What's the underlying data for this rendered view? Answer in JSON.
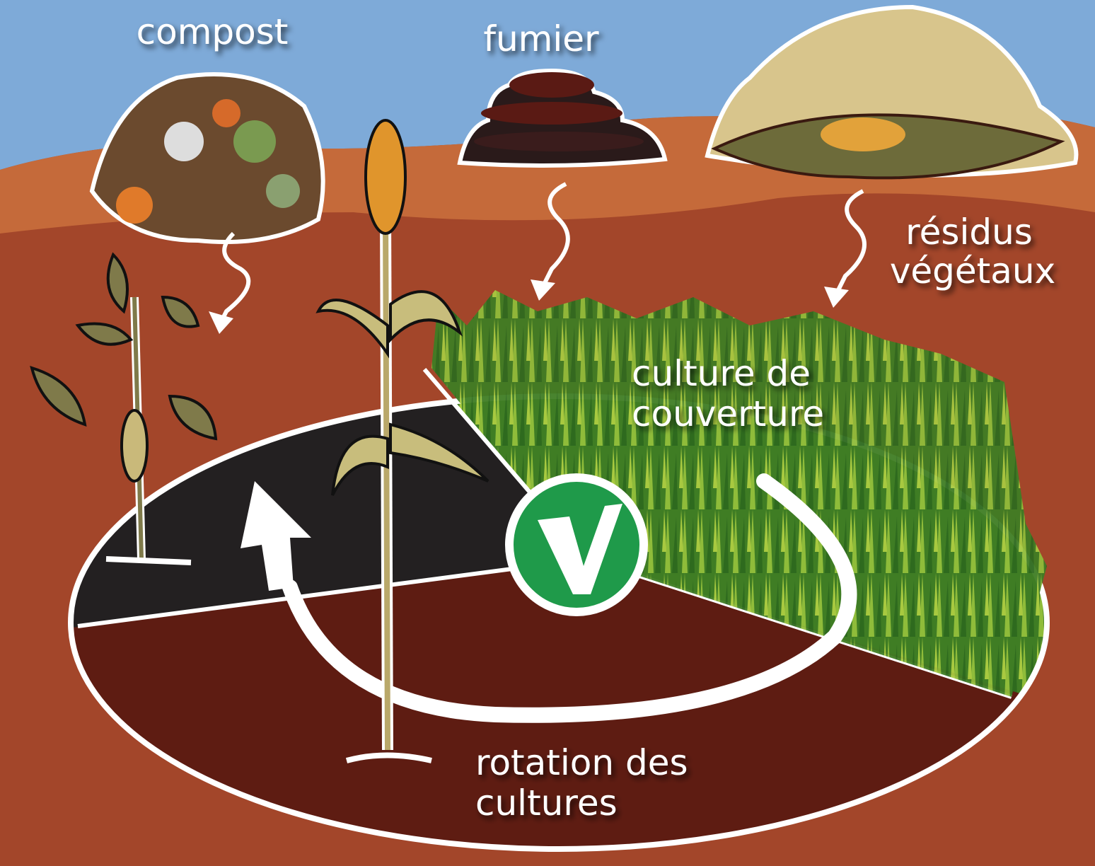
{
  "labels": {
    "compost": "compost",
    "fumier": "fumier",
    "residus": [
      "résidus",
      "végétaux"
    ],
    "couverture": [
      "culture de",
      "couverture"
    ],
    "rotation": [
      "rotation des",
      "cultures"
    ]
  }
}
